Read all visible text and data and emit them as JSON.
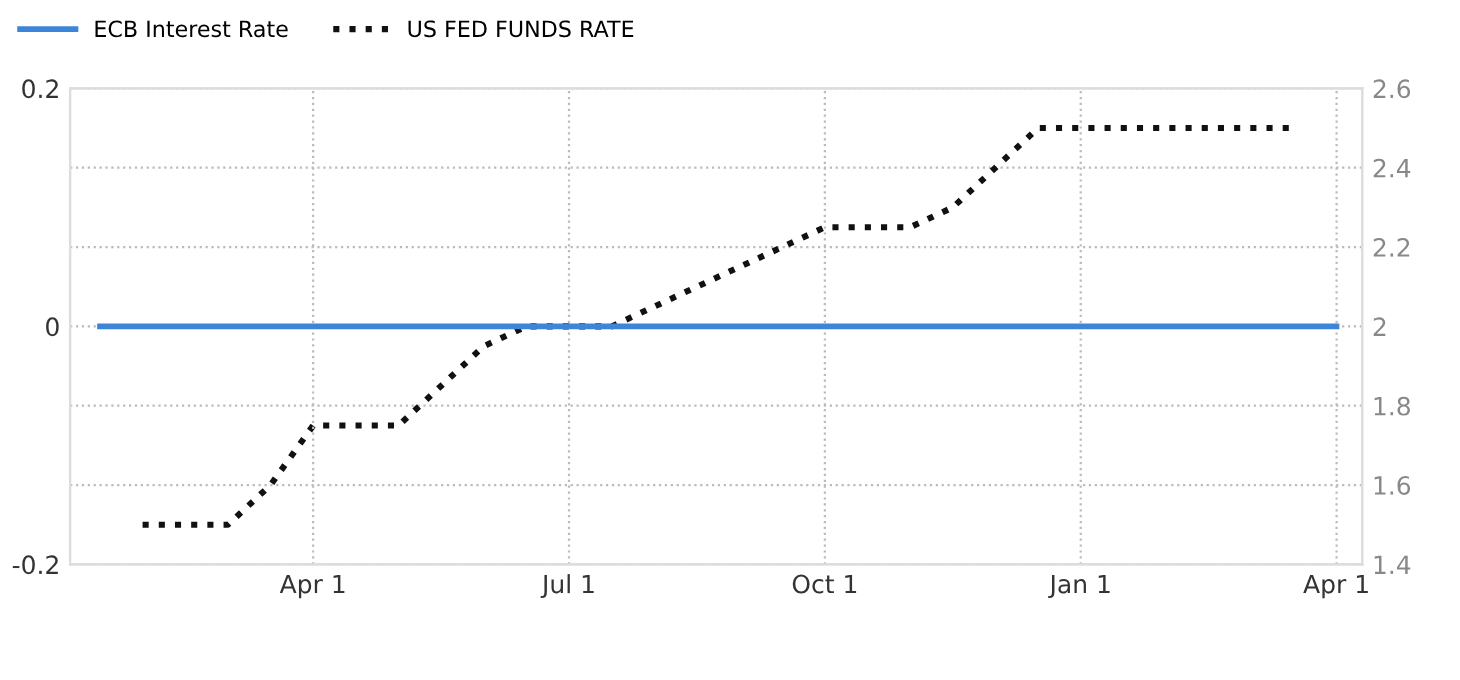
{
  "chart_data": {
    "type": "line",
    "categories": [
      null,
      null,
      null,
      null,
      null,
      "Apr 1",
      null,
      null,
      null,
      null,
      null,
      "Jul 1",
      null,
      null,
      null,
      null,
      null,
      "Oct 1",
      null,
      null,
      null,
      null,
      null,
      "Jan 1",
      null,
      null,
      null,
      null,
      null,
      "Apr 1"
    ],
    "series": [
      {
        "name": "ECB Interest Rate",
        "color": "#3d85d8",
        "line_style": "solid",
        "values": [
          0,
          0,
          0,
          0,
          0,
          0,
          0,
          0,
          0,
          0,
          0,
          0,
          0,
          0,
          0,
          0,
          0,
          0,
          0,
          0,
          0,
          0,
          0,
          0,
          0,
          0,
          0,
          0,
          0,
          0
        ]
      },
      {
        "name": "US FED FUNDS RATE",
        "color": "#111111",
        "line_style": "dotted",
        "axis": "y2",
        "values": [
          null,
          1.5,
          1.5,
          1.5,
          1.6,
          1.75,
          1.75,
          1.75,
          1.85,
          1.95,
          2,
          2,
          2,
          2.05,
          2.1,
          2.15,
          2.2,
          2.25,
          2.25,
          2.25,
          2.3,
          2.4,
          2.5,
          2.5,
          2.5,
          2.5,
          2.5,
          2.5,
          2.5,
          null
        ]
      }
    ],
    "ylim": [
      -0.2,
      0.2
    ],
    "yticks": [
      -0.2,
      0,
      0.2
    ],
    "y2lim": [
      1.4,
      2.6
    ],
    "y2ticks": [
      1.4,
      1.6,
      1.8,
      2,
      2.2,
      2.4,
      2.6
    ],
    "grid": true,
    "legend": "top left",
    "marker": "none"
  }
}
